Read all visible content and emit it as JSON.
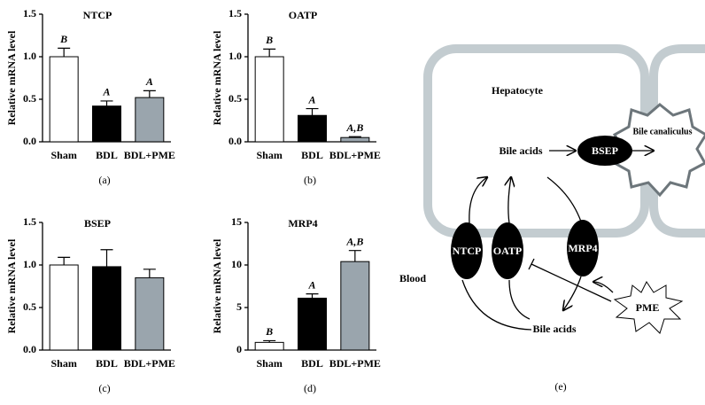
{
  "chart_data": [
    {
      "type": "bar",
      "title": "NTCP",
      "y_label": "Relative mRNA level",
      "panel": "(a)",
      "categories": [
        "Sham",
        "BDL",
        "BDL+PME"
      ],
      "values": [
        1.0,
        0.42,
        0.52
      ],
      "errors": [
        0.1,
        0.06,
        0.08
      ],
      "colors": [
        "#ffffff",
        "#000000",
        "#9aa5ad"
      ],
      "annotations": [
        "B",
        "A",
        "A"
      ],
      "ylim": [
        0,
        1.5
      ],
      "yticks": [
        {
          "value": 0,
          "label": "0.0"
        },
        0.5,
        {
          "value": 1,
          "label": "1.0"
        },
        1.5
      ]
    },
    {
      "type": "bar",
      "title": "OATP",
      "y_label": "Relative mRNA level",
      "panel": "(b)",
      "categories": [
        "Sham",
        "BDL",
        "BDL+PME"
      ],
      "values": [
        1.0,
        0.31,
        0.05
      ],
      "errors": [
        0.09,
        0.08,
        0.01
      ],
      "colors": [
        "#ffffff",
        "#000000",
        "#9aa5ad"
      ],
      "annotations": [
        "B",
        "A",
        "A,B"
      ],
      "ylim": [
        0,
        1.5
      ],
      "yticks": [
        {
          "value": 0,
          "label": "0.0"
        },
        0.5,
        {
          "value": 1,
          "label": "1.0"
        },
        1.5
      ]
    },
    {
      "type": "bar",
      "title": "BSEP",
      "y_label": "Relative mRNA level",
      "panel": "(c)",
      "categories": [
        "Sham",
        "BDL",
        "BDL+PME"
      ],
      "values": [
        1.0,
        0.98,
        0.85
      ],
      "errors": [
        0.09,
        0.2,
        0.1
      ],
      "colors": [
        "#ffffff",
        "#000000",
        "#9aa5ad"
      ],
      "ylim": [
        0,
        1.5
      ],
      "yticks": [
        {
          "value": 0,
          "label": "0.0"
        },
        0.5,
        {
          "value": 1,
          "label": "1.0"
        },
        1.5
      ]
    },
    {
      "type": "bar",
      "title": "MRP4",
      "y_label": "Relative mRNA level",
      "panel": "(d)",
      "categories": [
        "Sham",
        "BDL",
        "BDL+PME"
      ],
      "values": [
        0.9,
        6.1,
        10.4
      ],
      "errors": [
        0.2,
        0.5,
        1.3
      ],
      "colors": [
        "#ffffff",
        "#000000",
        "#9aa5ad"
      ],
      "annotations": [
        "B",
        "A",
        "A,B"
      ],
      "ylim": [
        0,
        15
      ],
      "yticks": [
        0,
        5,
        10,
        15
      ]
    }
  ],
  "diagram": {
    "hepatocyte": "Hepatocyte",
    "canaliculus": "Bile canaliculus",
    "bile_acids_top": "Bile acids",
    "bsep": "BSEP",
    "ntcp": "NTCP",
    "oatp": "OATP",
    "mrp4": "MRP4",
    "blood": "Blood",
    "pme": "PME",
    "bile_acids_bottom": "Bile acids",
    "panel": "(e)"
  }
}
